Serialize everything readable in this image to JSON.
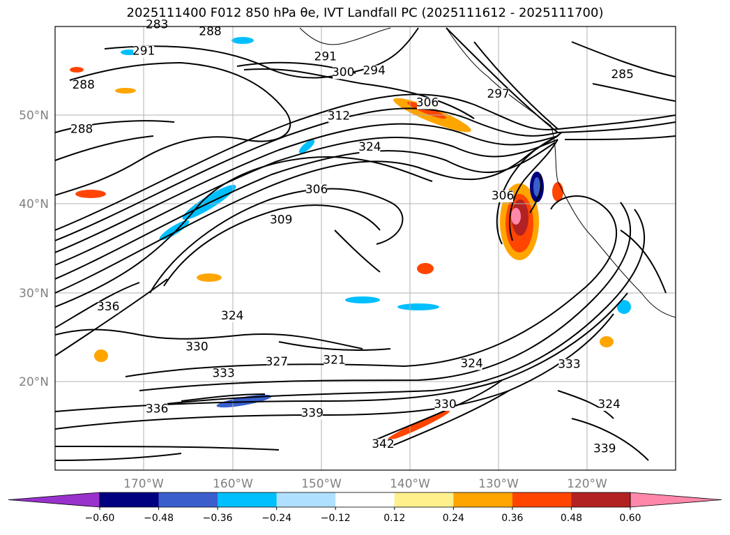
{
  "title": "2025111400 F012 850 hPa θe, IVT Landfall PC (2025111612 - 2025111700)",
  "chart_data": {
    "type": "contour-map",
    "title": "2025111400 F012 850 hPa θe, IVT Landfall PC (2025111612 - 2025111700)",
    "lon_range": [
      -180,
      -110
    ],
    "lat_range": [
      10,
      60
    ],
    "lon_ticks": [
      -170,
      -160,
      -150,
      -140,
      -130,
      -120
    ],
    "lon_tick_labels": [
      "170°W",
      "160°W",
      "150°W",
      "140°W",
      "130°W",
      "120°W"
    ],
    "lat_ticks": [
      20,
      30,
      40,
      50
    ],
    "lat_tick_labels": [
      "20°N",
      "30°N",
      "40°N",
      "50°N"
    ],
    "grid": true,
    "colorbar": {
      "orientation": "horizontal",
      "extend": "both",
      "levels": [
        -0.6,
        -0.48,
        -0.36,
        -0.24,
        -0.12,
        0.12,
        0.24,
        0.36,
        0.48,
        0.6
      ],
      "tick_labels": [
        "−0.60",
        "−0.48",
        "−0.36",
        "−0.24",
        "−0.12",
        "0.12",
        "0.24",
        "0.36",
        "0.48",
        "0.60"
      ],
      "colors": [
        "#9932cc",
        "#000080",
        "#3a5fcd",
        "#00bfff",
        "#b0e0ff",
        "#ffffff",
        "#fff08c",
        "#ffa500",
        "#ff4500",
        "#b22222",
        "#ff88aa"
      ]
    },
    "theta_e_contours": [
      {
        "value": "283",
        "lon": -168.5,
        "lat": 59.8
      },
      {
        "value": "288",
        "lon": -162.5,
        "lat": 59.0
      },
      {
        "value": "291",
        "lon": -170.0,
        "lat": 56.8
      },
      {
        "value": "291",
        "lon": -149.5,
        "lat": 56.2
      },
      {
        "value": "300",
        "lon": -147.5,
        "lat": 54.4
      },
      {
        "value": "294",
        "lon": -144.0,
        "lat": 54.6
      },
      {
        "value": "285",
        "lon": -116.0,
        "lat": 54.2
      },
      {
        "value": "288",
        "lon": -176.8,
        "lat": 53.0
      },
      {
        "value": "306",
        "lon": -138.0,
        "lat": 51.0
      },
      {
        "value": "297",
        "lon": -130.0,
        "lat": 52.0
      },
      {
        "value": "312",
        "lon": -148.0,
        "lat": 49.5
      },
      {
        "value": "288",
        "lon": -177.0,
        "lat": 48.0
      },
      {
        "value": "324",
        "lon": -144.5,
        "lat": 46.0
      },
      {
        "value": "306",
        "lon": -150.5,
        "lat": 41.2
      },
      {
        "value": "306",
        "lon": -129.5,
        "lat": 40.5
      },
      {
        "value": "309",
        "lon": -154.5,
        "lat": 37.8
      },
      {
        "value": "336",
        "lon": -174.0,
        "lat": 28.0
      },
      {
        "value": "324",
        "lon": -160.0,
        "lat": 27.0
      },
      {
        "value": "330",
        "lon": -164.0,
        "lat": 23.5
      },
      {
        "value": "327",
        "lon": -155.0,
        "lat": 21.8
      },
      {
        "value": "321",
        "lon": -148.5,
        "lat": 22.0
      },
      {
        "value": "333",
        "lon": -161.0,
        "lat": 20.5
      },
      {
        "value": "324",
        "lon": -133.0,
        "lat": 21.6
      },
      {
        "value": "333",
        "lon": -122.0,
        "lat": 21.5
      },
      {
        "value": "336",
        "lon": -168.5,
        "lat": 16.5
      },
      {
        "value": "339",
        "lon": -151.0,
        "lat": 16.0
      },
      {
        "value": "330",
        "lon": -136.0,
        "lat": 17.0
      },
      {
        "value": "324",
        "lon": -117.5,
        "lat": 17.0
      },
      {
        "value": "342",
        "lon": -143.0,
        "lat": 12.5
      },
      {
        "value": "339",
        "lon": -118.0,
        "lat": 12.0
      }
    ]
  }
}
